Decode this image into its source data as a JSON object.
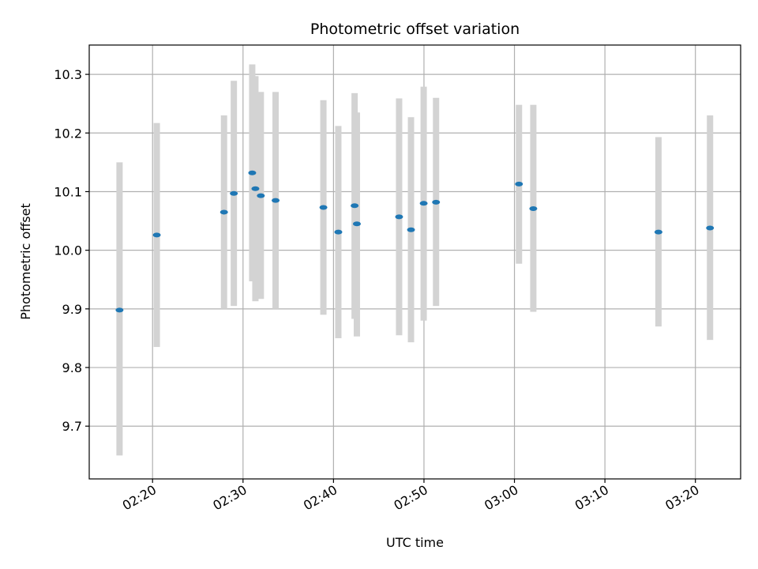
{
  "chart_data": {
    "type": "scatter",
    "title": "Photometric offset variation",
    "xlabel": "UTC time",
    "ylabel": "Photometric offset",
    "grid": true,
    "x_unit": "UTC time (hh:mm)",
    "xlim": [
      "02:13:00",
      "03:25:00"
    ],
    "ylim": [
      9.61,
      10.35
    ],
    "x_ticks": [
      "02:20",
      "02:30",
      "02:40",
      "02:50",
      "03:00",
      "03:10",
      "03:20"
    ],
    "y_ticks": [
      9.7,
      9.8,
      9.9,
      10.0,
      10.1,
      10.2,
      10.3
    ],
    "y_tick_labels": [
      "9.7",
      "9.8",
      "9.9",
      "10.0",
      "10.1",
      "10.2",
      "10.3"
    ],
    "colors": {
      "marker": "#1f77b4",
      "errorbar": "#d3d3d3",
      "grid": "#b0b0b0"
    },
    "points": [
      {
        "x": "02:16:21",
        "y": 9.898,
        "ylow": 9.65,
        "yhigh": 10.15
      },
      {
        "x": "02:20:28",
        "y": 10.026,
        "ylow": 9.835,
        "yhigh": 10.217
      },
      {
        "x": "02:27:54",
        "y": 10.065,
        "ylow": 9.9,
        "yhigh": 10.23
      },
      {
        "x": "02:28:59",
        "y": 10.097,
        "ylow": 9.905,
        "yhigh": 10.289
      },
      {
        "x": "02:31:01",
        "y": 10.132,
        "ylow": 9.947,
        "yhigh": 10.317
      },
      {
        "x": "02:31:22",
        "y": 10.105,
        "ylow": 9.913,
        "yhigh": 10.297
      },
      {
        "x": "02:31:58",
        "y": 10.093,
        "ylow": 9.917,
        "yhigh": 10.27
      },
      {
        "x": "02:33:36",
        "y": 10.085,
        "ylow": 9.9,
        "yhigh": 10.27
      },
      {
        "x": "02:38:53",
        "y": 10.073,
        "ylow": 9.89,
        "yhigh": 10.256
      },
      {
        "x": "02:40:32",
        "y": 10.031,
        "ylow": 9.85,
        "yhigh": 10.212
      },
      {
        "x": "02:42:20",
        "y": 10.076,
        "ylow": 9.883,
        "yhigh": 10.268
      },
      {
        "x": "02:42:35",
        "y": 10.045,
        "ylow": 9.853,
        "yhigh": 10.235
      },
      {
        "x": "02:47:15",
        "y": 10.057,
        "ylow": 9.855,
        "yhigh": 10.259
      },
      {
        "x": "02:48:34",
        "y": 10.035,
        "ylow": 9.843,
        "yhigh": 10.227
      },
      {
        "x": "02:49:58",
        "y": 10.08,
        "ylow": 9.88,
        "yhigh": 10.279
      },
      {
        "x": "02:51:20",
        "y": 10.082,
        "ylow": 9.905,
        "yhigh": 10.26
      },
      {
        "x": "03:00:30",
        "y": 10.113,
        "ylow": 9.977,
        "yhigh": 10.248
      },
      {
        "x": "03:02:05",
        "y": 10.071,
        "ylow": 9.895,
        "yhigh": 10.248
      },
      {
        "x": "03:15:55",
        "y": 10.031,
        "ylow": 9.87,
        "yhigh": 10.193
      },
      {
        "x": "03:21:37",
        "y": 10.038,
        "ylow": 9.847,
        "yhigh": 10.23
      }
    ]
  }
}
